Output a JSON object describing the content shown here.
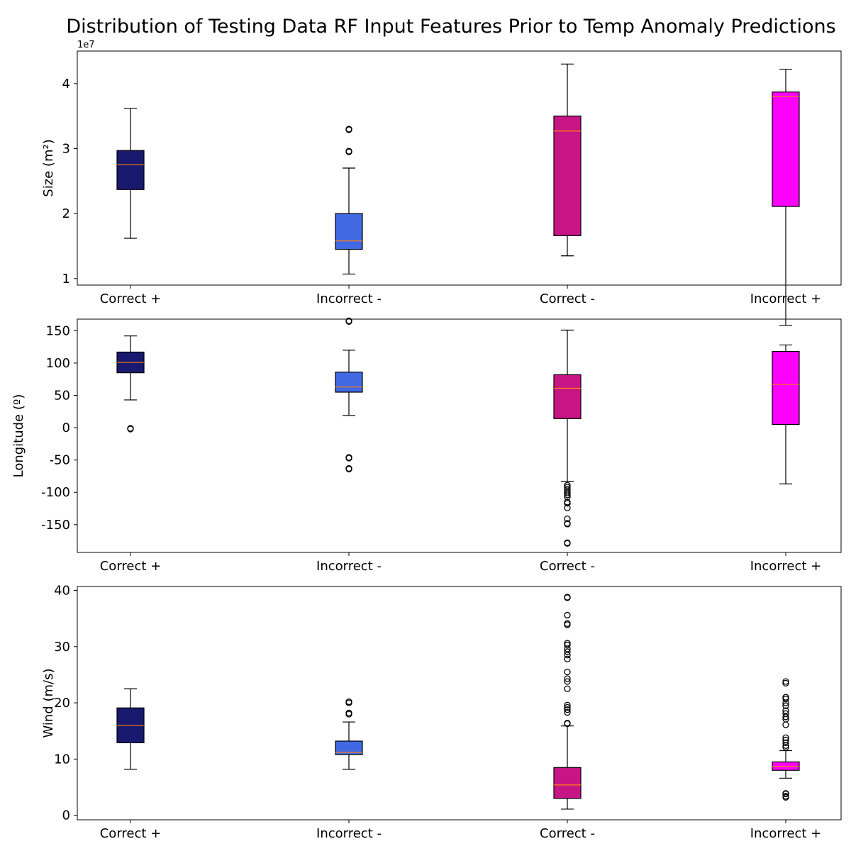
{
  "figure": {
    "title": "Distribution of Testing Data RF Input Features Prior to Temp Anomaly Predictions"
  },
  "chart_data": [
    {
      "type": "box",
      "categories": [
        "Correct +",
        "Incorrect -",
        "Correct -",
        "Incorrect +"
      ],
      "colors": [
        "#191970",
        "#4169e1",
        "#c71585",
        "#ff00ff"
      ],
      "ylabel": "Size (m²)",
      "offset_label": "1e7",
      "ylim": [
        0.9,
        4.5
      ],
      "yticks": [
        1,
        2,
        3,
        4
      ],
      "boxes": [
        {
          "whislo": 1.62,
          "q1": 2.37,
          "med": 2.75,
          "q3": 2.97,
          "whishi": 3.62,
          "fliers": []
        },
        {
          "whislo": 1.07,
          "q1": 1.45,
          "med": 1.58,
          "q3": 2.0,
          "whishi": 2.7,
          "fliers": [
            0.34,
            0.35,
            2.95,
            2.96,
            3.29,
            3.3
          ]
        },
        {
          "whislo": 1.35,
          "q1": 1.66,
          "med": 3.27,
          "q3": 3.5,
          "whishi": 4.3,
          "fliers": []
        },
        {
          "whislo": 0.28,
          "q1": 2.11,
          "med": 3.8,
          "q3": 3.87,
          "whishi": 4.22,
          "fliers": []
        }
      ]
    },
    {
      "type": "box",
      "categories": [
        "Correct +",
        "Incorrect -",
        "Correct -",
        "Incorrect +"
      ],
      "colors": [
        "#191970",
        "#4169e1",
        "#c71585",
        "#ff00ff"
      ],
      "ylabel": "Longitude (º)",
      "ylim": [
        -193,
        168
      ],
      "yticks": [
        -150,
        -100,
        -50,
        0,
        50,
        100,
        150
      ],
      "boxes": [
        {
          "whislo": 43,
          "q1": 85,
          "med": 101,
          "q3": 117,
          "whishi": 142,
          "fliers": [
            -1,
            -2
          ]
        },
        {
          "whislo": 19,
          "q1": 55,
          "med": 63,
          "q3": 86,
          "whishi": 120,
          "fliers": [
            -46,
            -47,
            -63,
            -64
          ]
        },
        {
          "whislo": -83,
          "q1": 14,
          "med": 61,
          "q3": 82,
          "whishi": 151,
          "fliers": [
            -89,
            -92,
            -95,
            -98,
            -101,
            -104,
            -107,
            -115,
            -117,
            -124,
            -141,
            -148,
            -149,
            -178,
            -179
          ]
        },
        {
          "whislo": -87,
          "q1": 5,
          "med": 67,
          "q3": 118,
          "whishi": 128,
          "fliers": []
        }
      ]
    },
    {
      "type": "box",
      "categories": [
        "Correct +",
        "Incorrect -",
        "Correct -",
        "Incorrect +"
      ],
      "colors": [
        "#191970",
        "#4169e1",
        "#c71585",
        "#ff00ff"
      ],
      "ylabel": "Wind (m/s)",
      "ylim": [
        -0.8,
        40.7
      ],
      "yticks": [
        0,
        10,
        20,
        30,
        40
      ],
      "boxes": [
        {
          "whislo": 8.2,
          "q1": 12.9,
          "med": 16.0,
          "q3": 19.1,
          "whishi": 22.5,
          "fliers": []
        },
        {
          "whislo": 8.2,
          "q1": 10.8,
          "med": 11.2,
          "q3": 13.2,
          "whishi": 16.6,
          "fliers": [
            18.0,
            18.2,
            20.0,
            20.2
          ]
        },
        {
          "whislo": 1.1,
          "q1": 3.0,
          "med": 5.4,
          "q3": 8.5,
          "whishi": 15.9,
          "fliers": [
            16.3,
            16.4,
            18.3,
            18.8,
            19.2,
            19.6,
            22.5,
            23.8,
            24.3,
            25.5,
            27.8,
            28.5,
            29.1,
            29.6,
            30.3,
            30.6,
            33.9,
            34.1,
            35.6,
            38.7,
            38.8
          ]
        },
        {
          "whislo": 6.6,
          "q1": 8.0,
          "med": 8.7,
          "q3": 9.5,
          "whishi": 11.5,
          "fliers": [
            3.2,
            3.4,
            3.8,
            3.9,
            12.1,
            12.4,
            12.9,
            13.4,
            13.8,
            16.1,
            17.1,
            17.5,
            18.1,
            18.6,
            19.5,
            20.0,
            20.7,
            21.0,
            23.5,
            23.8
          ]
        }
      ]
    }
  ]
}
